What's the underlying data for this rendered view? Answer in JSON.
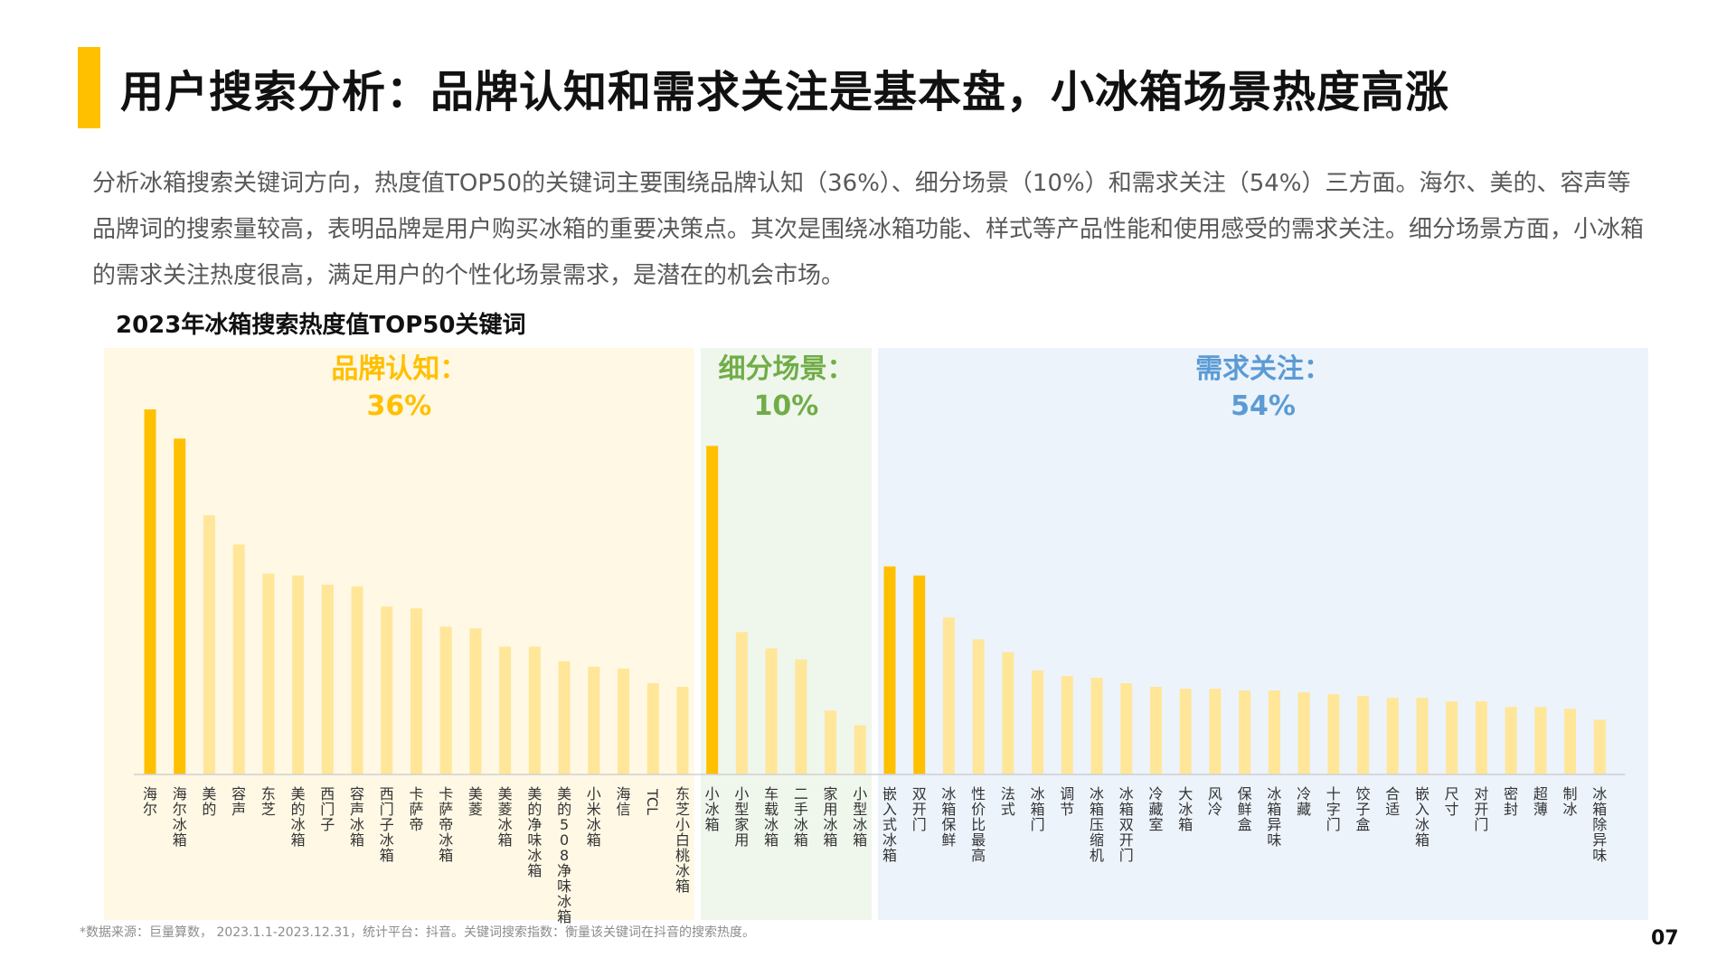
{
  "header": {
    "title": "用户搜索分析：品牌认知和需求关注是基本盘，小冰箱场景热度高涨"
  },
  "intro_text": "分析冰箱搜索关键词方向，热度值TOP50的关键词主要围绕品牌认知（36%）、细分场景（10%）和需求关注（54%）三方面。海尔、美的、容声等品牌词的搜索量较高，表明品牌是用户购买冰箱的重要决策点。其次是围绕冰箱功能、样式等产品性能和使用感受的需求关注。细分场景方面，小冰箱的需求关注热度很高，满足用户的个性化场景需求，是潜在的机会市场。",
  "colors": {
    "accent": "#FFC000",
    "bar_highlight": "#FFC000",
    "bar_normal": "#FFE699",
    "group_brand_bg": "#FFF8E5",
    "group_scene_bg": "#EFF6EC",
    "group_need_bg": "#ECF3FB",
    "group_brand_label": "#FFC000",
    "group_scene_label": "#70AD47",
    "group_need_label": "#5B9BD5"
  },
  "chart_data": {
    "type": "bar",
    "title": "2023年冰箱搜索热度值TOP50关键词",
    "ylim": [
      0,
      100
    ],
    "grid": false,
    "groups": [
      {
        "label": "品牌认知：",
        "percent": "36%",
        "color": "#FFC000",
        "bg": "#FFF8E5",
        "categories": [
          "海尔",
          "海尔冰箱",
          "美的",
          "容声",
          "东芝",
          "美的冰箱",
          "西门子",
          "容声冰箱",
          "西门子冰箱",
          "卡萨帝",
          "卡萨帝冰箱",
          "美菱",
          "美菱冰箱",
          "美的净味冰箱",
          "美的508净味冰箱",
          "小米冰箱",
          "海信",
          "TCL",
          "东芝小白桃冰箱"
        ],
        "values": [
          100,
          92,
          71,
          63,
          55,
          54.5,
          52,
          51.5,
          46,
          45.5,
          40.5,
          40,
          35,
          35,
          31,
          29.5,
          29,
          25,
          24
        ],
        "highlight": [
          true,
          true,
          false,
          false,
          false,
          false,
          false,
          false,
          false,
          false,
          false,
          false,
          false,
          false,
          false,
          false,
          false,
          false,
          false
        ]
      },
      {
        "label": "细分场景：",
        "percent": "10%",
        "color": "#70AD47",
        "bg": "#EFF6EC",
        "categories": [
          "小冰箱",
          "小型家用",
          "车载冰箱",
          "二手冰箱",
          "家用冰箱",
          "小型冰箱"
        ],
        "values": [
          90,
          39,
          34.5,
          31.5,
          17.5,
          13.5
        ],
        "highlight": [
          true,
          false,
          false,
          false,
          false,
          false
        ]
      },
      {
        "label": "需求关注：",
        "percent": "54%",
        "color": "#5B9BD5",
        "bg": "#ECF3FB",
        "categories": [
          "嵌入式冰箱",
          "双开门",
          "冰箱保鲜",
          "性价比最高",
          "法式",
          "冰箱门",
          "调节",
          "冰箱压缩机",
          "冰箱双开门",
          "冷藏室",
          "大冰箱",
          "风冷",
          "保鲜盒",
          "冰箱异味",
          "冷藏",
          "十字门",
          "饺子盒",
          "合适",
          "嵌入冰箱",
          "尺寸",
          "对开门",
          "密封",
          "超薄",
          "制冰",
          "冰箱除异味"
        ],
        "values": [
          57,
          54.5,
          43,
          37,
          33.5,
          28.5,
          27,
          26.5,
          25,
          24,
          23.5,
          23.5,
          23,
          23,
          22.5,
          22,
          21.5,
          21,
          21,
          20,
          20,
          18.5,
          18.5,
          18,
          15
        ],
        "highlight": [
          true,
          true,
          false,
          false,
          false,
          false,
          false,
          false,
          false,
          false,
          false,
          false,
          false,
          false,
          false,
          false,
          false,
          false,
          false,
          false,
          false,
          false,
          false,
          false,
          false
        ]
      }
    ]
  },
  "footer": {
    "source_note": "*数据来源：巨量算数， 2023.1.1-2023.12.31，统计平台：抖音。关键词搜索指数：衡量该关键词在抖音的搜索热度。",
    "page_number": "07"
  }
}
